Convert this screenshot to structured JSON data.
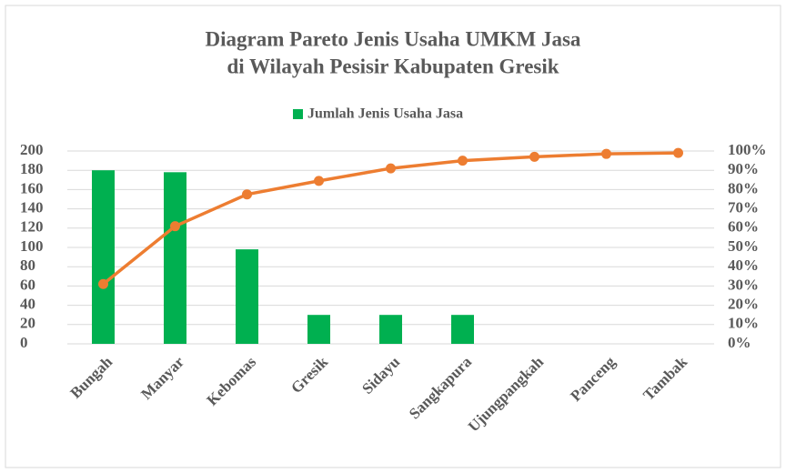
{
  "chart_data": {
    "type": "pareto",
    "title": [
      "Diagram Pareto Jenis Usaha UMKM Jasa",
      "di Wilayah Pesisir Kabupaten Gresik"
    ],
    "categories": [
      "Bungah",
      "Manyar",
      "Kebomas",
      "Gresik",
      "Sidayu",
      "Sangkapura",
      "Ujungpangkah",
      "Panceng",
      "Tambak"
    ],
    "series": [
      {
        "name": "Jumlah Jenis Usaha Jasa",
        "type": "bar",
        "color": "#00b050",
        "values": [
          180,
          178,
          98,
          30,
          30,
          30,
          0,
          0,
          0
        ]
      },
      {
        "type": "line",
        "axis": "y2",
        "color": "#ed7d31",
        "values": [
          31,
          61,
          77.5,
          84.5,
          91,
          95,
          97,
          98.5,
          99
        ]
      }
    ],
    "ylim": [
      0,
      200
    ],
    "yticks": [
      0,
      20,
      40,
      60,
      80,
      100,
      120,
      140,
      160,
      180,
      200
    ],
    "y2lim": [
      0,
      100
    ],
    "y2ticks": [
      {
        "value": 0,
        "label": "0%"
      },
      {
        "value": 10,
        "label": "10%"
      },
      {
        "value": 20,
        "label": "20%"
      },
      {
        "value": 30,
        "label": "30%"
      },
      {
        "value": 40,
        "label": "40%"
      },
      {
        "value": 50,
        "label": "50%"
      },
      {
        "value": 60,
        "label": "60%"
      },
      {
        "value": 70,
        "label": "70%"
      },
      {
        "value": 80,
        "label": "80%"
      },
      {
        "value": 90,
        "label": "90%"
      },
      {
        "value": 100,
        "label": "100%"
      }
    ],
    "grid": true,
    "legend": "top"
  }
}
